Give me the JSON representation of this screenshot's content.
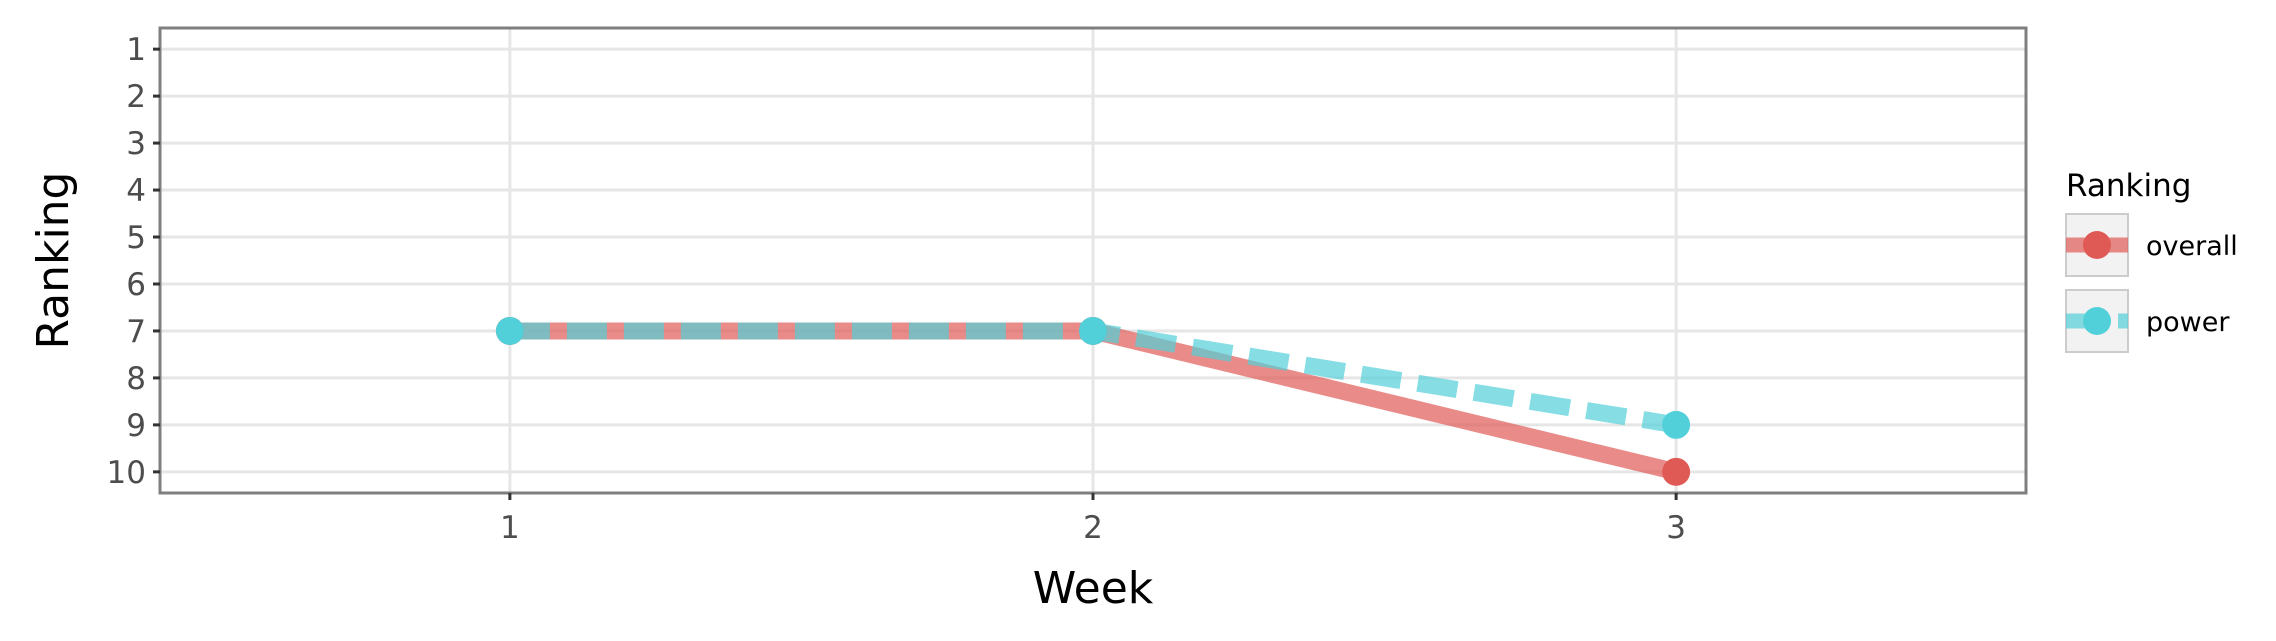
{
  "chart_data": {
    "type": "line",
    "xlabel": "Week",
    "ylabel": "Ranking",
    "x": [
      1,
      2,
      3
    ],
    "x_ticks": [
      "1",
      "2",
      "3"
    ],
    "y_ticks": [
      "1",
      "2",
      "3",
      "4",
      "5",
      "6",
      "7",
      "8",
      "9",
      "10"
    ],
    "xlim": [
      0.4,
      3.6
    ],
    "ylim": [
      0.55,
      10.45
    ],
    "y_reversed": true,
    "grid": true,
    "legend": {
      "title": "Ranking",
      "position": "right"
    },
    "series": [
      {
        "name": "overall",
        "values": [
          7,
          7,
          10
        ],
        "color": "#e05a55",
        "line_style": "solid"
      },
      {
        "name": "power",
        "values": [
          7,
          7,
          9
        ],
        "color": "#52d0d9",
        "line_style": "dashed"
      }
    ]
  }
}
